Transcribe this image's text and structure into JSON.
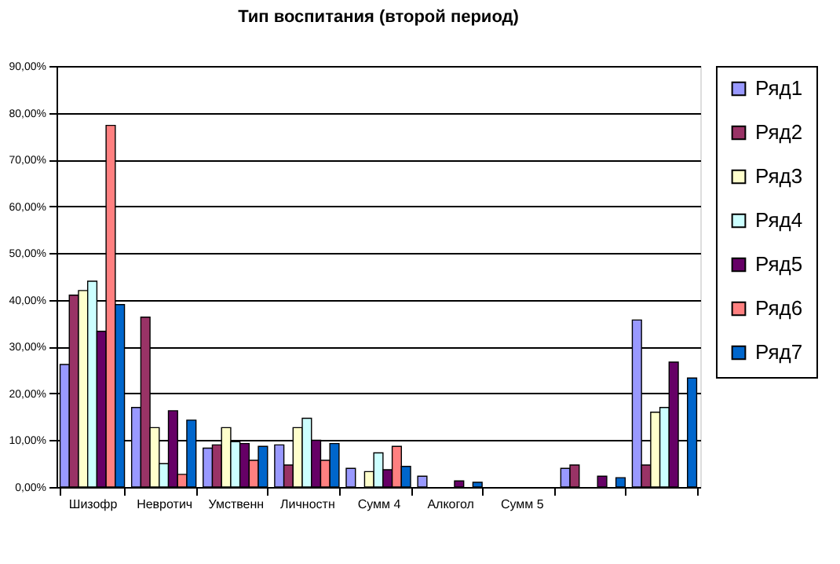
{
  "chart_data": {
    "type": "bar",
    "title": "Тип воспитания (второй период)",
    "categories": [
      "Шизофр",
      "Невротич",
      "Умственн",
      "Личностн",
      "Сумм 4",
      "Алкогол",
      "Сумм 5",
      null,
      null
    ],
    "series": [
      {
        "name": "Ряд1",
        "color": "#9999ff",
        "values": [
          26.2,
          17,
          8.3,
          9,
          4,
          2.3,
          null,
          4,
          35.7
        ]
      },
      {
        "name": "Ряд2",
        "color": "#993366",
        "values": [
          41,
          36.3,
          9,
          4.7,
          null,
          null,
          null,
          4.7,
          4.7
        ]
      },
      {
        "name": "Ряд3",
        "color": "#ffffcc",
        "values": [
          42,
          12.7,
          12.7,
          12.7,
          3.3,
          null,
          null,
          null,
          16
        ]
      },
      {
        "name": "Ряд4",
        "color": "#ccffff",
        "values": [
          44,
          5,
          9.7,
          14.7,
          7.3,
          null,
          null,
          null,
          17
        ]
      },
      {
        "name": "Ряд5",
        "color": "#660066",
        "values": [
          33.3,
          16.3,
          9.3,
          10,
          3.7,
          1.3,
          null,
          2.3,
          26.7
        ]
      },
      {
        "name": "Ряд6",
        "color": "#ff8080",
        "values": [
          77.3,
          2.7,
          5.7,
          5.7,
          8.7,
          null,
          null,
          null,
          null
        ]
      },
      {
        "name": "Ряд7",
        "color": "#0066cc",
        "values": [
          39,
          14.3,
          8.7,
          9.3,
          4.4,
          1,
          null,
          2,
          23.3
        ]
      }
    ],
    "ylim": [
      0,
      90
    ],
    "yticks": [
      {
        "value": 0,
        "label": "0,00%"
      },
      {
        "value": 10,
        "label": "10,00%"
      },
      {
        "value": 20,
        "label": "20,00%"
      },
      {
        "value": 30,
        "label": "30,00%"
      },
      {
        "value": 40,
        "label": "40,00%"
      },
      {
        "value": 50,
        "label": "50,00%"
      },
      {
        "value": 60,
        "label": "60,00%"
      },
      {
        "value": 70,
        "label": "70,00%"
      },
      {
        "value": 80,
        "label": "80,00%"
      },
      {
        "value": 90,
        "label": "90,00%"
      }
    ],
    "grid": "y",
    "legend": "right"
  }
}
